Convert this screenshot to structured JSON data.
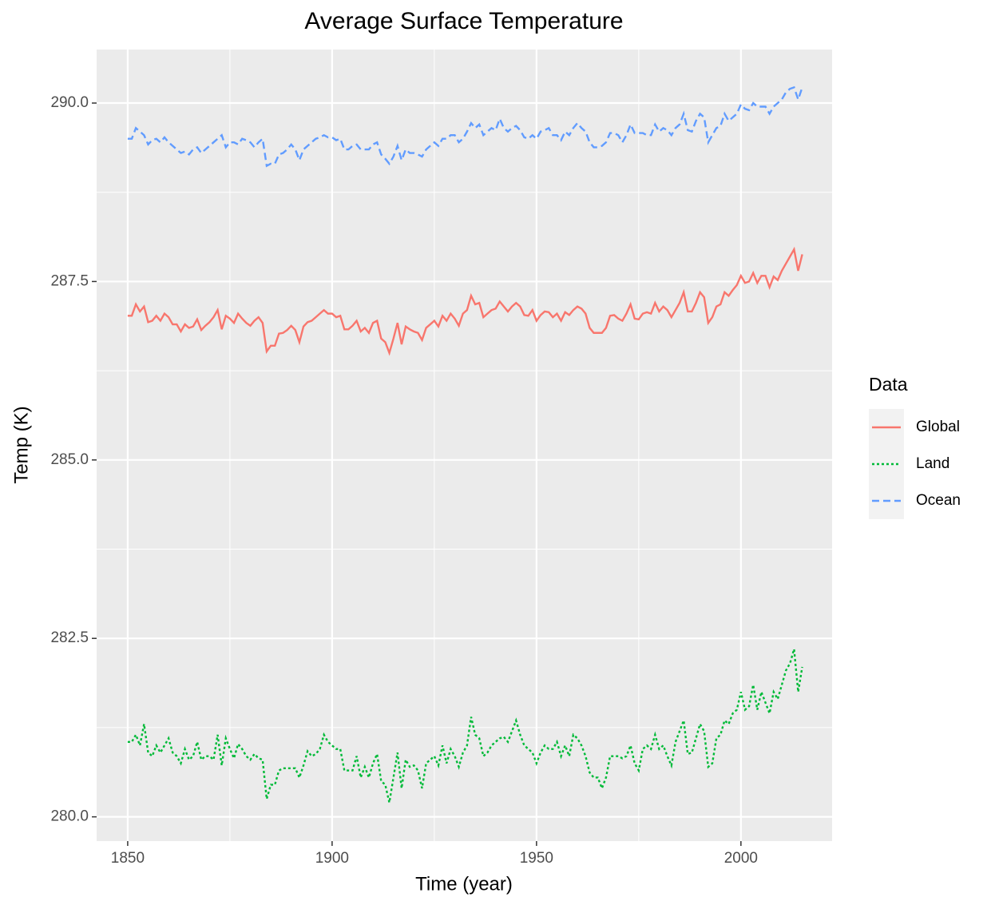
{
  "chart_data": {
    "type": "line",
    "title": "Average Surface Temperature",
    "x_label": "Time (year)",
    "y_label": "Temp (K)",
    "legend_title": "Data",
    "legend_position": "right",
    "grid": true,
    "xlim": [
      1842.4,
      2022.3
    ],
    "xticks": [
      1850,
      1900,
      1950,
      2000
    ],
    "xminor_ticks": [
      1875,
      1925,
      1975
    ],
    "ylim": [
      279.66,
      290.75
    ],
    "yticks": [
      {
        "value": 280,
        "label": "280.0"
      },
      {
        "value": 282.5,
        "label": "282.5"
      },
      {
        "value": 285,
        "label": "285.0"
      },
      {
        "value": 287.5,
        "label": "287.5"
      },
      {
        "value": 290,
        "label": "290.0"
      }
    ],
    "yminor_ticks": [
      281.25,
      283.75,
      286.25,
      288.75
    ],
    "x": [
      1850,
      1851,
      1852,
      1853,
      1854,
      1855,
      1856,
      1857,
      1858,
      1859,
      1860,
      1861,
      1862,
      1863,
      1864,
      1865,
      1866,
      1867,
      1868,
      1869,
      1870,
      1871,
      1872,
      1873,
      1874,
      1875,
      1876,
      1877,
      1878,
      1879,
      1880,
      1881,
      1882,
      1883,
      1884,
      1885,
      1886,
      1887,
      1888,
      1889,
      1890,
      1891,
      1892,
      1893,
      1894,
      1895,
      1896,
      1897,
      1898,
      1899,
      1900,
      1901,
      1902,
      1903,
      1904,
      1905,
      1906,
      1907,
      1908,
      1909,
      1910,
      1911,
      1912,
      1913,
      1914,
      1915,
      1916,
      1917,
      1918,
      1919,
      1920,
      1921,
      1922,
      1923,
      1924,
      1925,
      1926,
      1927,
      1928,
      1929,
      1930,
      1931,
      1932,
      1933,
      1934,
      1935,
      1936,
      1937,
      1938,
      1939,
      1940,
      1941,
      1942,
      1943,
      1944,
      1945,
      1946,
      1947,
      1948,
      1949,
      1950,
      1951,
      1952,
      1953,
      1954,
      1955,
      1956,
      1957,
      1958,
      1959,
      1960,
      1961,
      1962,
      1963,
      1964,
      1965,
      1966,
      1967,
      1968,
      1969,
      1970,
      1971,
      1972,
      1973,
      1974,
      1975,
      1976,
      1977,
      1978,
      1979,
      1980,
      1981,
      1982,
      1983,
      1984,
      1985,
      1986,
      1987,
      1988,
      1989,
      1990,
      1991,
      1992,
      1993,
      1994,
      1995,
      1996,
      1997,
      1998,
      1999,
      2000,
      2001,
      2002,
      2003,
      2004,
      2005,
      2006,
      2007,
      2008,
      2009,
      2010,
      2011,
      2012,
      2013,
      2014,
      2015
    ],
    "series": [
      {
        "name": "Global",
        "color": "#F8766D",
        "dash": "solid",
        "values": [
          287.02,
          287.02,
          287.18,
          287.08,
          287.15,
          286.93,
          286.95,
          287.02,
          286.95,
          287.05,
          287.0,
          286.9,
          286.9,
          286.8,
          286.9,
          286.85,
          286.87,
          286.97,
          286.82,
          286.88,
          286.93,
          287.0,
          287.1,
          286.83,
          287.02,
          286.98,
          286.92,
          287.05,
          286.98,
          286.92,
          286.88,
          286.95,
          287.0,
          286.92,
          286.52,
          286.6,
          286.6,
          286.77,
          286.78,
          286.82,
          286.88,
          286.82,
          286.65,
          286.87,
          286.93,
          286.95,
          287.0,
          287.05,
          287.1,
          287.05,
          287.05,
          287.0,
          287.02,
          286.83,
          286.83,
          286.88,
          286.95,
          286.8,
          286.85,
          286.78,
          286.92,
          286.95,
          286.7,
          286.65,
          286.5,
          286.7,
          286.92,
          286.62,
          286.87,
          286.83,
          286.8,
          286.78,
          286.68,
          286.85,
          286.9,
          286.95,
          286.87,
          287.02,
          286.95,
          287.05,
          286.98,
          286.88,
          287.05,
          287.1,
          287.3,
          287.18,
          287.2,
          287.0,
          287.05,
          287.1,
          287.12,
          287.22,
          287.15,
          287.08,
          287.15,
          287.2,
          287.15,
          287.03,
          287.02,
          287.1,
          286.95,
          287.03,
          287.08,
          287.07,
          287.0,
          287.05,
          286.95,
          287.07,
          287.03,
          287.1,
          287.15,
          287.12,
          287.05,
          286.85,
          286.78,
          286.78,
          286.78,
          286.85,
          287.02,
          287.03,
          286.98,
          286.95,
          287.05,
          287.18,
          286.98,
          286.97,
          287.05,
          287.07,
          287.05,
          287.2,
          287.08,
          287.15,
          287.1,
          287.0,
          287.1,
          287.2,
          287.35,
          287.08,
          287.08,
          287.2,
          287.35,
          287.28,
          286.92,
          287.0,
          287.15,
          287.18,
          287.35,
          287.3,
          287.38,
          287.45,
          287.58,
          287.48,
          287.5,
          287.62,
          287.48,
          287.58,
          287.58,
          287.42,
          287.57,
          287.52,
          287.65,
          287.75,
          287.85,
          287.95,
          287.65,
          287.88
        ]
      },
      {
        "name": "Land",
        "color": "#00BA38",
        "dash": "dotted",
        "values": [
          281.05,
          281.05,
          281.15,
          281.0,
          281.3,
          280.9,
          280.85,
          281.0,
          280.9,
          281.0,
          281.1,
          280.9,
          280.85,
          280.75,
          280.95,
          280.8,
          280.85,
          281.05,
          280.8,
          280.85,
          280.85,
          280.8,
          281.15,
          280.72,
          281.1,
          280.95,
          280.82,
          281.02,
          280.95,
          280.85,
          280.8,
          280.88,
          280.82,
          280.8,
          280.25,
          280.45,
          280.45,
          280.65,
          280.68,
          280.68,
          280.68,
          280.68,
          280.55,
          280.72,
          280.92,
          280.85,
          280.88,
          280.95,
          281.15,
          281.05,
          281.0,
          280.95,
          280.95,
          280.65,
          280.65,
          280.65,
          280.85,
          280.55,
          280.7,
          280.55,
          280.75,
          280.88,
          280.5,
          280.45,
          280.2,
          280.55,
          280.9,
          280.4,
          280.8,
          280.7,
          280.72,
          280.65,
          280.4,
          280.75,
          280.8,
          280.85,
          280.72,
          281.0,
          280.75,
          280.95,
          280.85,
          280.7,
          280.9,
          281.0,
          281.4,
          281.15,
          281.1,
          280.85,
          280.9,
          281.0,
          281.05,
          281.1,
          281.12,
          281.05,
          281.2,
          281.35,
          281.15,
          281.0,
          280.95,
          280.9,
          280.75,
          280.9,
          281.0,
          280.95,
          280.95,
          281.05,
          280.85,
          281.0,
          280.85,
          281.15,
          281.1,
          281.0,
          280.85,
          280.62,
          280.55,
          280.55,
          280.4,
          280.55,
          280.85,
          280.85,
          280.85,
          280.82,
          280.85,
          281.0,
          280.75,
          280.65,
          280.95,
          281.0,
          280.95,
          281.15,
          280.95,
          281.0,
          280.85,
          280.72,
          281.05,
          281.2,
          281.35,
          280.88,
          280.9,
          281.1,
          281.3,
          281.2,
          280.7,
          280.75,
          281.1,
          281.15,
          281.35,
          281.3,
          281.45,
          281.5,
          281.75,
          281.5,
          281.55,
          281.85,
          281.5,
          281.75,
          281.6,
          281.45,
          281.75,
          281.65,
          281.85,
          282.05,
          282.15,
          282.35,
          281.75,
          282.1
        ]
      },
      {
        "name": "Ocean",
        "color": "#619CFF",
        "dash": "dashed",
        "values": [
          289.5,
          289.5,
          289.65,
          289.6,
          289.55,
          289.42,
          289.48,
          289.5,
          289.45,
          289.52,
          289.45,
          289.4,
          289.35,
          289.3,
          289.32,
          289.28,
          289.35,
          289.38,
          289.3,
          289.35,
          289.4,
          289.45,
          289.5,
          289.55,
          289.38,
          289.45,
          289.45,
          289.42,
          289.5,
          289.48,
          289.45,
          289.38,
          289.45,
          289.5,
          289.12,
          289.15,
          289.15,
          289.28,
          289.3,
          289.35,
          289.42,
          289.35,
          289.2,
          289.35,
          289.4,
          289.45,
          289.5,
          289.52,
          289.55,
          289.52,
          289.52,
          289.48,
          289.5,
          289.35,
          289.35,
          289.4,
          289.42,
          289.35,
          289.35,
          289.35,
          289.42,
          289.45,
          289.28,
          289.22,
          289.15,
          289.25,
          289.4,
          289.2,
          289.35,
          289.3,
          289.3,
          289.28,
          289.25,
          289.35,
          289.4,
          289.45,
          289.4,
          289.5,
          289.5,
          289.55,
          289.55,
          289.45,
          289.5,
          289.6,
          289.72,
          289.65,
          289.7,
          289.55,
          289.6,
          289.65,
          289.62,
          289.78,
          289.65,
          289.6,
          289.65,
          289.68,
          289.62,
          289.52,
          289.5,
          289.55,
          289.5,
          289.6,
          289.62,
          289.65,
          289.55,
          289.55,
          289.48,
          289.6,
          289.55,
          289.65,
          289.72,
          289.65,
          289.6,
          289.45,
          289.38,
          289.38,
          289.4,
          289.45,
          289.58,
          289.58,
          289.55,
          289.45,
          289.55,
          289.7,
          289.58,
          289.58,
          289.58,
          289.55,
          289.55,
          289.7,
          289.6,
          289.65,
          289.62,
          289.55,
          289.65,
          289.7,
          289.85,
          289.62,
          289.6,
          289.75,
          289.85,
          289.8,
          289.45,
          289.55,
          289.65,
          289.68,
          289.85,
          289.75,
          289.8,
          289.85,
          289.98,
          289.92,
          289.9,
          290.0,
          289.95,
          289.95,
          289.95,
          289.85,
          289.95,
          290.0,
          290.05,
          290.15,
          290.2,
          290.22,
          290.05,
          290.22
        ]
      }
    ]
  }
}
